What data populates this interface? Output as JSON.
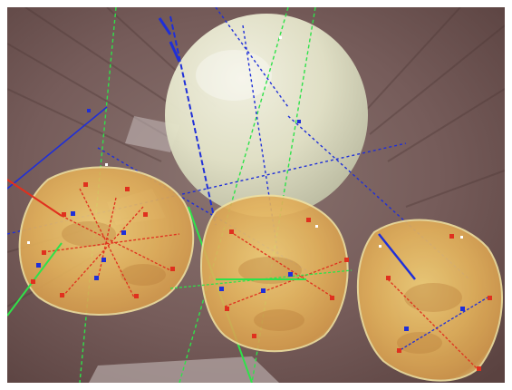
{
  "scene": {
    "background_color": "#6f5654",
    "sphere_color": "#e4e4c6",
    "cell_color": "#e8b85a",
    "track_colors": {
      "blue": "#1f2fd8",
      "green": "#2fe24a",
      "red": "#e0301e"
    }
  }
}
